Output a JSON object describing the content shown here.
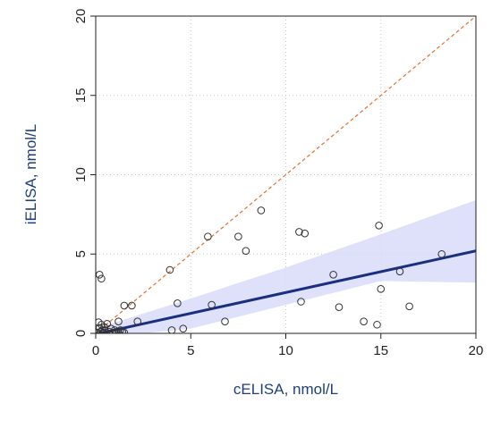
{
  "chart_data": {
    "type": "scatter",
    "title": "",
    "xlabel": "cELISA, nmol/L",
    "ylabel": "iELISA, nmol/L",
    "xlim": [
      0,
      20
    ],
    "ylim": [
      0,
      20
    ],
    "x_ticks": [
      0,
      5,
      10,
      15,
      20
    ],
    "y_ticks": [
      0,
      5,
      10,
      15,
      20
    ],
    "grid": true,
    "series": [
      {
        "kind": "points",
        "color": "#333333",
        "points": [
          [
            0.1,
            0.05
          ],
          [
            0.15,
            0.7
          ],
          [
            0.2,
            0.35
          ],
          [
            0.25,
            0.1
          ],
          [
            0.3,
            0.55
          ],
          [
            0.35,
            0.2
          ],
          [
            0.4,
            0.05
          ],
          [
            0.45,
            0.4
          ],
          [
            0.5,
            0.15
          ],
          [
            0.6,
            0.6
          ],
          [
            0.7,
            0.1
          ],
          [
            0.8,
            0.3
          ],
          [
            0.9,
            0.05
          ],
          [
            1.0,
            0.2
          ],
          [
            1.1,
            0.1
          ],
          [
            1.2,
            0.05
          ],
          [
            1.3,
            0.2
          ],
          [
            1.4,
            0.1
          ],
          [
            1.5,
            0.05
          ],
          [
            0.2,
            3.7
          ],
          [
            0.3,
            3.45
          ],
          [
            1.2,
            0.75
          ],
          [
            1.5,
            1.75
          ],
          [
            1.9,
            1.75
          ],
          [
            2.2,
            0.75
          ],
          [
            3.9,
            4.0
          ],
          [
            4.0,
            0.2
          ],
          [
            4.3,
            1.9
          ],
          [
            4.6,
            0.3
          ],
          [
            5.9,
            6.1
          ],
          [
            6.1,
            1.8
          ],
          [
            6.8,
            0.75
          ],
          [
            7.5,
            6.1
          ],
          [
            7.9,
            5.2
          ],
          [
            8.7,
            7.75
          ],
          [
            10.7,
            6.4
          ],
          [
            10.8,
            2.0
          ],
          [
            11.0,
            6.3
          ],
          [
            12.5,
            3.7
          ],
          [
            12.8,
            1.65
          ],
          [
            14.1,
            0.75
          ],
          [
            14.8,
            0.55
          ],
          [
            14.9,
            6.8
          ],
          [
            15.0,
            2.8
          ],
          [
            16.0,
            3.9
          ],
          [
            16.5,
            1.7
          ],
          [
            18.2,
            5.0
          ]
        ]
      },
      {
        "kind": "regression-line",
        "color": "#1a2f80",
        "x": [
          0,
          20
        ],
        "y": [
          -0.05,
          5.2
        ]
      },
      {
        "kind": "confidence-band",
        "color": "#d8dcf8",
        "x": [
          0,
          5,
          10,
          15,
          20
        ],
        "upper": [
          0.3,
          2.2,
          4.15,
          6.25,
          8.4
        ],
        "lower": [
          -0.3,
          0.3,
          1.8,
          3.3,
          3.2
        ]
      },
      {
        "kind": "identity-line",
        "color": "#e07030",
        "x": [
          0,
          20
        ],
        "y": [
          0,
          20
        ]
      }
    ]
  }
}
